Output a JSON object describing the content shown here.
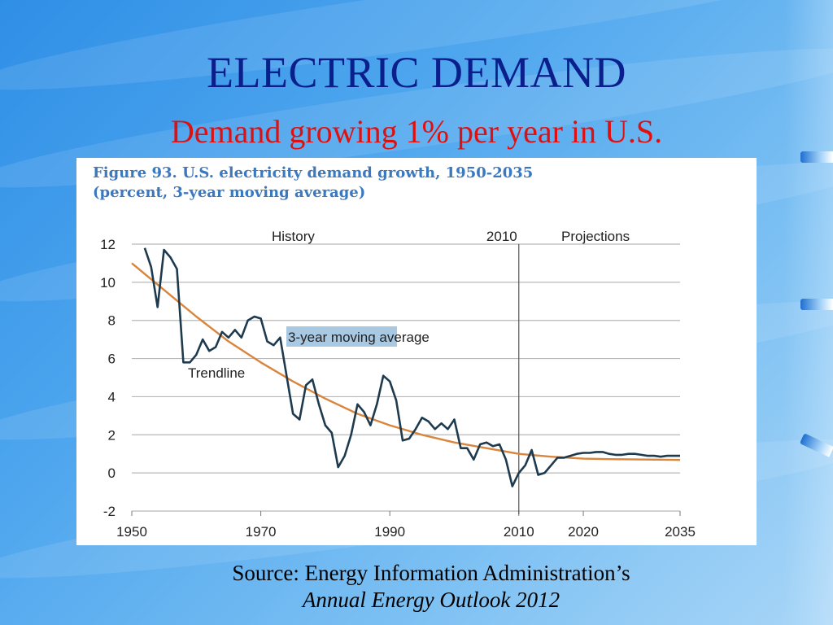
{
  "slide": {
    "title": "ELECTRIC DEMAND",
    "subtitle": "Demand growing 1% per year in U.S.",
    "source_line1": "Source: Energy Information Administration’s",
    "source_line2": "Annual Energy Outlook 2012"
  },
  "colors": {
    "title": "#0a1f8c",
    "subtitle": "#e01010",
    "series_history": "#1e3a4e",
    "trendline": "#d9853b",
    "figure_title": "#3a78c0"
  },
  "chart_data": {
    "type": "line",
    "title_line1": "Figure 93. U.S. electricity demand growth, 1950-2035",
    "title_line2": "(percent, 3-year moving average)",
    "xlim": [
      1950,
      2035
    ],
    "ylim": [
      -2,
      12
    ],
    "x_ticks": [
      1950,
      1970,
      1990,
      2010,
      2020,
      2035
    ],
    "y_ticks": [
      -2,
      0,
      2,
      4,
      6,
      8,
      10,
      12
    ],
    "grid": true,
    "annotations": {
      "history": "History",
      "year_2010": "2010",
      "projections": "Projections",
      "moving_average": "3-year moving average",
      "trendline": "Trendline"
    },
    "divider_x": 2010,
    "series": [
      {
        "name": "3-year moving average",
        "x": [
          1952,
          1953,
          1954,
          1955,
          1956,
          1957,
          1958,
          1959,
          1960,
          1961,
          1962,
          1963,
          1964,
          1965,
          1966,
          1967,
          1968,
          1969,
          1970,
          1971,
          1972,
          1973,
          1974,
          1975,
          1976,
          1977,
          1978,
          1979,
          1980,
          1981,
          1982,
          1983,
          1984,
          1985,
          1986,
          1987,
          1988,
          1989,
          1990,
          1991,
          1992,
          1993,
          1994,
          1995,
          1996,
          1997,
          1998,
          1999,
          2000,
          2001,
          2002,
          2003,
          2004,
          2005,
          2006,
          2007,
          2008,
          2009,
          2010,
          2011,
          2012,
          2013,
          2014,
          2015,
          2016,
          2017,
          2018,
          2019,
          2020,
          2021,
          2022,
          2023,
          2024,
          2025,
          2026,
          2027,
          2028,
          2029,
          2030,
          2031,
          2032,
          2033,
          2034,
          2035
        ],
        "values": [
          11.8,
          10.8,
          8.7,
          11.7,
          11.3,
          10.7,
          5.8,
          5.8,
          6.2,
          7.0,
          6.4,
          6.6,
          7.4,
          7.1,
          7.5,
          7.1,
          8.0,
          8.2,
          8.1,
          6.9,
          6.7,
          7.1,
          5.1,
          3.1,
          2.8,
          4.6,
          4.9,
          3.6,
          2.5,
          2.1,
          0.3,
          0.9,
          2.0,
          3.6,
          3.2,
          2.5,
          3.6,
          5.1,
          4.8,
          3.8,
          1.7,
          1.8,
          2.3,
          2.9,
          2.7,
          2.3,
          2.6,
          2.3,
          2.8,
          1.3,
          1.3,
          0.7,
          1.5,
          1.6,
          1.4,
          1.5,
          0.7,
          -0.7,
          0.0,
          0.4,
          1.2,
          -0.1,
          0.0,
          0.4,
          0.8,
          0.8,
          0.9,
          1.0,
          1.05,
          1.05,
          1.1,
          1.1,
          1.0,
          0.95,
          0.95,
          1.0,
          1.0,
          0.95,
          0.9,
          0.9,
          0.85,
          0.9,
          0.9,
          0.9
        ]
      },
      {
        "name": "Trendline",
        "x": [
          1950,
          1955,
          1960,
          1965,
          1970,
          1975,
          1980,
          1985,
          1990,
          1995,
          2000,
          2005,
          2010,
          2015,
          2020,
          2025,
          2030,
          2035
        ],
        "values": [
          11.0,
          9.6,
          8.2,
          6.9,
          5.8,
          4.8,
          3.9,
          3.1,
          2.5,
          2.0,
          1.6,
          1.3,
          1.0,
          0.85,
          0.75,
          0.72,
          0.7,
          0.68
        ]
      }
    ]
  }
}
